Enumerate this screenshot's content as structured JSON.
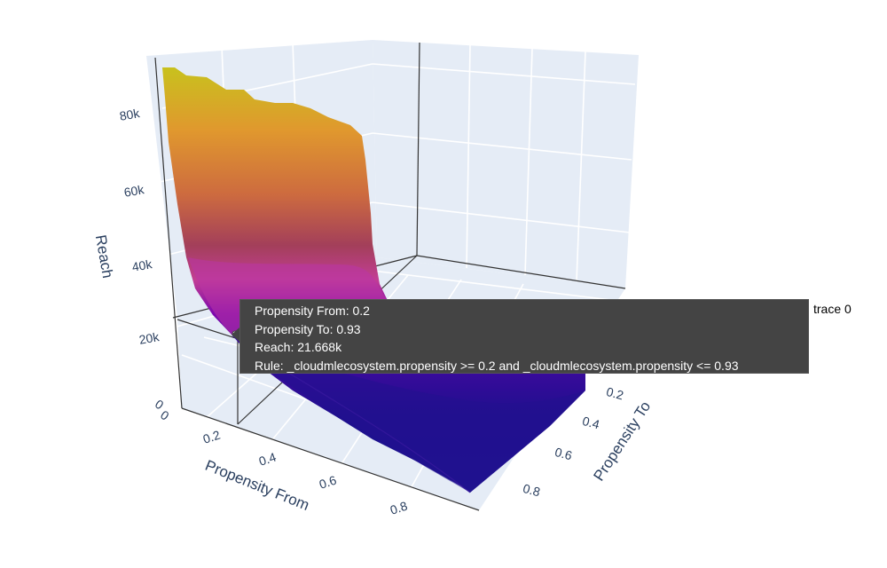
{
  "chart_data": {
    "type": "surface",
    "x_axis": {
      "title": "Propensity From",
      "ticks": [
        "0",
        "0.2",
        "0.4",
        "0.6",
        "0.8"
      ]
    },
    "y_axis": {
      "title": "Propensity To",
      "ticks": [
        "0.2",
        "0.4",
        "0.6",
        "0.8"
      ]
    },
    "z_axis": {
      "title": "Reach",
      "ticks": [
        "0",
        "20k",
        "40k",
        "60k",
        "80k"
      ],
      "range": [
        0,
        90000
      ]
    },
    "colorscale": "plasma",
    "trace_name": "trace 0",
    "profile": {
      "propensity_from": [
        0.0,
        0.2,
        0.4,
        0.6,
        0.8,
        0.9
      ],
      "reach_at_propensity_to_0.93": [
        90000,
        21668,
        12000,
        7000,
        3000,
        1500
      ]
    },
    "hover": {
      "propensity_from": "Propensity From: 0.2",
      "propensity_to": "Propensity To: 0.93",
      "reach": "Reach: 21.668k",
      "rule": "Rule: _cloudmlecosystem.propensity >= 0.2 and _cloudmlecosystem.propensity <= 0.93"
    }
  }
}
